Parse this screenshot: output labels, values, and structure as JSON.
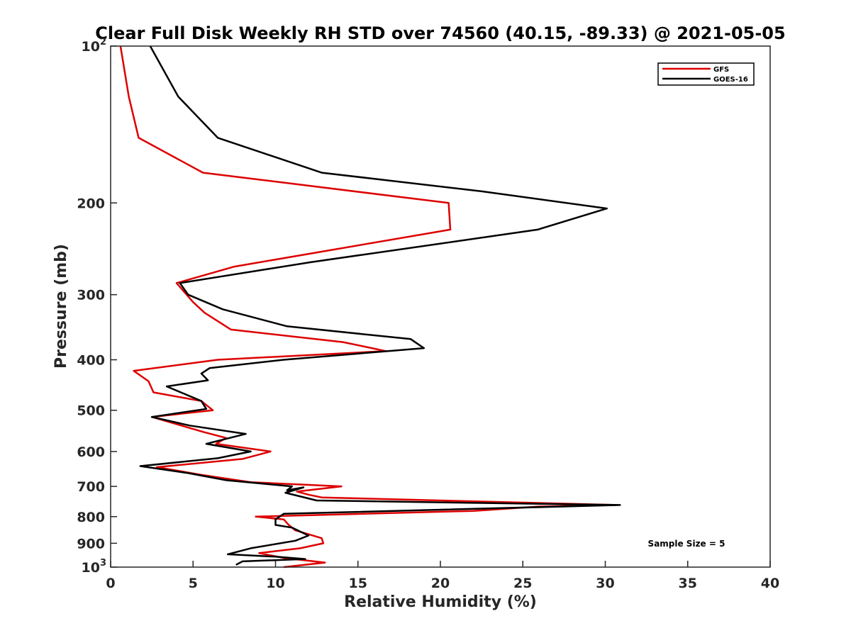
{
  "chart_data": {
    "type": "line",
    "title": "Clear Full Disk Weekly RH STD over 74560 (40.15, -89.33) @ 2021-05-05",
    "xlabel": "Relative Humidity (%)",
    "ylabel": "Pressure (mb)",
    "xlim": [
      0,
      40
    ],
    "ylim": [
      100,
      1000
    ],
    "y_scale": "log",
    "y_reversed": true,
    "grid": false,
    "legend_position": "top-right",
    "x_ticks": [
      "0",
      "5",
      "10",
      "15",
      "20",
      "25",
      "30",
      "35",
      "40"
    ],
    "y_ticks": [
      {
        "value": 100,
        "base": "10",
        "exp": "2"
      },
      {
        "value": 200,
        "label": "200"
      },
      {
        "value": 300,
        "label": "300"
      },
      {
        "value": 400,
        "label": "400"
      },
      {
        "value": 500,
        "label": "500"
      },
      {
        "value": 600,
        "label": "600"
      },
      {
        "value": 700,
        "label": "700"
      },
      {
        "value": 800,
        "label": "800"
      },
      {
        "value": 900,
        "label": "900"
      },
      {
        "value": 1000,
        "base": "10",
        "exp": "3"
      }
    ],
    "annotation": "Sample Size = 5",
    "series": [
      {
        "name": "GFS",
        "color": "#dd0000",
        "points": [
          [
            0.6,
            100
          ],
          [
            1.1,
            125
          ],
          [
            1.7,
            150
          ],
          [
            5.6,
            175
          ],
          [
            20.5,
            200
          ],
          [
            20.6,
            225
          ],
          [
            7.5,
            265
          ],
          [
            4.0,
            285
          ],
          [
            5.0,
            310
          ],
          [
            5.7,
            325
          ],
          [
            7.3,
            350
          ],
          [
            14.1,
            370
          ],
          [
            16.7,
            385
          ],
          [
            6.5,
            400
          ],
          [
            1.4,
            420
          ],
          [
            2.3,
            440
          ],
          [
            2.6,
            462
          ],
          [
            5.5,
            480
          ],
          [
            6.2,
            500
          ],
          [
            2.5,
            515
          ],
          [
            5.6,
            550
          ],
          [
            7.0,
            565
          ],
          [
            6.4,
            580
          ],
          [
            9.7,
            600
          ],
          [
            8.0,
            620
          ],
          [
            2.8,
            643
          ],
          [
            5.5,
            665
          ],
          [
            8.5,
            687
          ],
          [
            14.0,
            700
          ],
          [
            11.3,
            716
          ],
          [
            12.0,
            726
          ],
          [
            12.8,
            735
          ],
          [
            30.7,
            760
          ],
          [
            26.0,
            765
          ],
          [
            22.0,
            780
          ],
          [
            8.8,
            800
          ],
          [
            10.5,
            810
          ],
          [
            10.8,
            830
          ],
          [
            11.2,
            850
          ],
          [
            12.8,
            880
          ],
          [
            12.9,
            900
          ],
          [
            11.5,
            920
          ],
          [
            9.0,
            940
          ],
          [
            10.5,
            960
          ],
          [
            13.0,
            980
          ],
          [
            10.5,
            1000
          ]
        ]
      },
      {
        "name": "GOES-16",
        "color": "#000000",
        "points": [
          [
            2.4,
            100
          ],
          [
            4.1,
            125
          ],
          [
            6.5,
            150
          ],
          [
            12.8,
            175
          ],
          [
            22.5,
            190
          ],
          [
            30.1,
            205
          ],
          [
            25.9,
            225
          ],
          [
            12.1,
            260
          ],
          [
            4.2,
            285
          ],
          [
            4.7,
            300
          ],
          [
            6.8,
            320
          ],
          [
            10.7,
            345
          ],
          [
            18.2,
            365
          ],
          [
            19.0,
            380
          ],
          [
            10.5,
            400
          ],
          [
            6.0,
            415
          ],
          [
            5.5,
            425
          ],
          [
            5.9,
            438
          ],
          [
            3.4,
            450
          ],
          [
            5.5,
            480
          ],
          [
            5.8,
            497
          ],
          [
            2.5,
            515
          ],
          [
            4.8,
            535
          ],
          [
            8.2,
            555
          ],
          [
            5.8,
            580
          ],
          [
            8.5,
            600
          ],
          [
            6.5,
            618
          ],
          [
            1.8,
            640
          ],
          [
            4.7,
            660
          ],
          [
            7.0,
            681
          ],
          [
            11.0,
            700
          ],
          [
            10.7,
            712
          ],
          [
            11.7,
            703
          ],
          [
            10.6,
            720
          ],
          [
            12.5,
            745
          ],
          [
            30.9,
            760
          ],
          [
            10.5,
            790
          ],
          [
            10.0,
            810
          ],
          [
            10.0,
            830
          ],
          [
            11.0,
            840
          ],
          [
            12.0,
            870
          ],
          [
            11.2,
            890
          ],
          [
            8.5,
            920
          ],
          [
            7.1,
            945
          ],
          [
            10.0,
            955
          ],
          [
            11.8,
            965
          ],
          [
            8.0,
            975
          ],
          [
            7.6,
            990
          ]
        ]
      }
    ]
  }
}
